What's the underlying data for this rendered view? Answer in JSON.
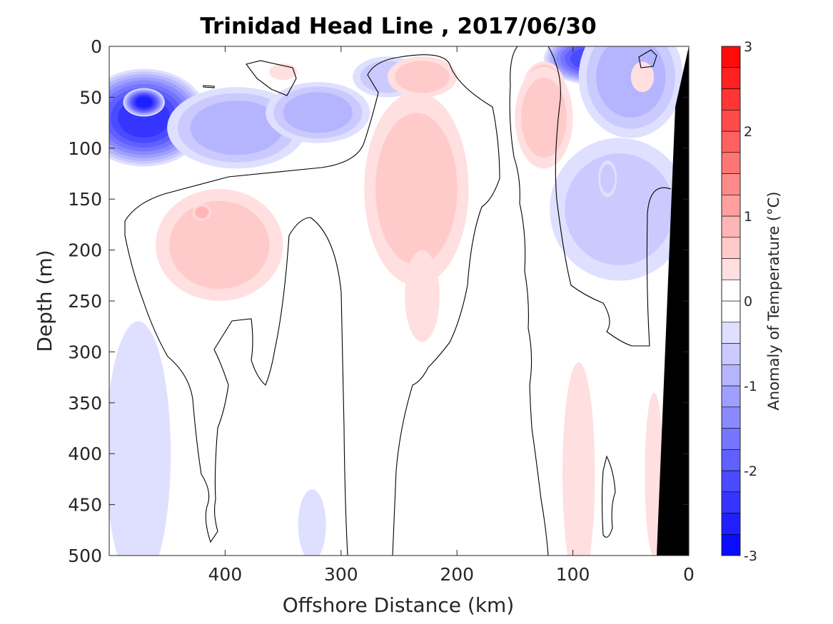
{
  "chart_data": {
    "type": "heatmap",
    "title": "Trinidad Head Line , 2017/06/30",
    "xlabel": "Offshore Distance (km)",
    "ylabel": "Depth (m)",
    "colorbar_label": "Anomaly of Temperature (°C)",
    "x_reversed": true,
    "y_reversed": true,
    "xlim": [
      0,
      500
    ],
    "ylim": [
      0,
      500
    ],
    "xticks": [
      400,
      300,
      200,
      100,
      0
    ],
    "yticks": [
      0,
      50,
      100,
      150,
      200,
      250,
      300,
      350,
      400,
      450,
      500
    ],
    "cbar_range": [
      -3,
      3
    ],
    "cbar_step": 0.25,
    "cbar_ticks": [
      3,
      2,
      1,
      0,
      -1,
      -2,
      -3
    ],
    "colormap": {
      "negative": "#0000ff",
      "zero": "#ffffff",
      "positive": "#ff0000"
    },
    "contour_level": 0,
    "bathymetry_color": "#000000",
    "blobs": [
      {
        "x": 470,
        "depth": 70,
        "rx": 55,
        "ry": 48,
        "value": -2.3
      },
      {
        "x": 470,
        "depth": 55,
        "rx": 18,
        "ry": 14,
        "value": -2.7
      },
      {
        "x": 390,
        "depth": 80,
        "rx": 60,
        "ry": 40,
        "value": -0.9
      },
      {
        "x": 320,
        "depth": 65,
        "rx": 45,
        "ry": 30,
        "value": -0.9
      },
      {
        "x": 260,
        "depth": 30,
        "rx": 30,
        "ry": 20,
        "value": -0.5
      },
      {
        "x": 85,
        "depth": 12,
        "rx": 40,
        "ry": 25,
        "value": -2.0
      },
      {
        "x": 50,
        "depth": 30,
        "rx": 45,
        "ry": 60,
        "value": -0.9
      },
      {
        "x": 60,
        "depth": 160,
        "rx": 60,
        "ry": 70,
        "value": -0.5
      },
      {
        "x": 70,
        "depth": 130,
        "rx": 8,
        "ry": 18,
        "value": -0.7
      },
      {
        "x": 40,
        "depth": 30,
        "rx": 10,
        "ry": 15,
        "value": 0.3
      },
      {
        "x": 125,
        "depth": 40,
        "rx": 18,
        "ry": 25,
        "value": 1.1
      },
      {
        "x": 125,
        "depth": 70,
        "rx": 25,
        "ry": 50,
        "value": 0.5
      },
      {
        "x": 235,
        "depth": 140,
        "rx": 45,
        "ry": 95,
        "value": 0.6
      },
      {
        "x": 230,
        "depth": 245,
        "rx": 15,
        "ry": 45,
        "value": 0.4
      },
      {
        "x": 230,
        "depth": 30,
        "rx": 30,
        "ry": 20,
        "value": 0.5
      },
      {
        "x": 405,
        "depth": 195,
        "rx": 55,
        "ry": 55,
        "value": 0.5
      },
      {
        "x": 420,
        "depth": 163,
        "rx": 8,
        "ry": 8,
        "value": 0.8
      },
      {
        "x": 350,
        "depth": 25,
        "rx": 12,
        "ry": 8,
        "value": 0.4
      },
      {
        "x": 95,
        "depth": 420,
        "rx": 14,
        "ry": 110,
        "value": 0.4
      },
      {
        "x": 30,
        "depth": 420,
        "rx": 8,
        "ry": 80,
        "value": 0.4
      },
      {
        "x": 475,
        "depth": 400,
        "rx": 28,
        "ry": 130,
        "value": -0.4
      },
      {
        "x": 325,
        "depth": 470,
        "rx": 12,
        "ry": 35,
        "value": -0.4
      }
    ]
  }
}
